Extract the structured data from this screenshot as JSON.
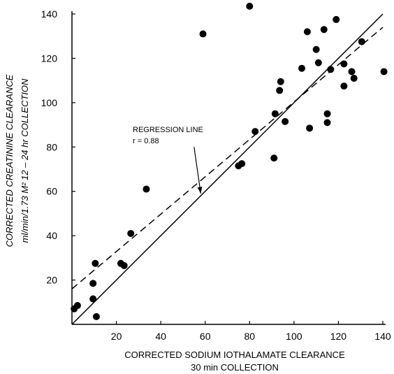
{
  "chart_data": {
    "type": "scatter",
    "xlabel_line1": "CORRECTED SODIUM IOTHALAMATE CLEARANCE",
    "xlabel_line2": "30 min COLLECTION",
    "ylabel_line1": "CORRECTED CREATININE CLEARANCE",
    "ylabel_line2": "ml/min/1.73 M² 12 – 24 hr COLLECTION",
    "xlim": [
      0,
      140
    ],
    "ylim": [
      0,
      140
    ],
    "x_ticks": [
      20,
      40,
      60,
      80,
      100,
      120,
      140
    ],
    "y_ticks": [
      20,
      40,
      60,
      80,
      100,
      120,
      140
    ],
    "grid": false,
    "annotation": {
      "title": "REGRESSION LINE",
      "r_text": "r = 0.88",
      "arrow_from": [
        55,
        80
      ],
      "arrow_to": [
        58,
        59
      ]
    },
    "identity_line": {
      "style": "solid",
      "from": [
        0,
        0
      ],
      "to": [
        140,
        140
      ]
    },
    "regression_line": {
      "style": "dashed",
      "from": [
        0,
        16
      ],
      "to": [
        140,
        134
      ]
    },
    "points": [
      [
        1,
        7
      ],
      [
        2.5,
        8.5
      ],
      [
        9.5,
        11.5
      ],
      [
        9.5,
        18.5
      ],
      [
        10.5,
        27.5
      ],
      [
        11,
        3.5
      ],
      [
        22,
        27.5
      ],
      [
        23.5,
        26.5
      ],
      [
        26.5,
        41
      ],
      [
        33.5,
        61
      ],
      [
        59,
        131
      ],
      [
        80,
        143.5
      ],
      [
        75,
        71.5
      ],
      [
        76.5,
        72.5
      ],
      [
        82.5,
        87
      ],
      [
        91,
        75
      ],
      [
        91.5,
        95
      ],
      [
        93.5,
        105.5
      ],
      [
        94,
        109.5
      ],
      [
        96,
        91.5
      ],
      [
        103.5,
        115.5
      ],
      [
        106,
        132
      ],
      [
        107,
        88.5
      ],
      [
        110,
        124
      ],
      [
        111,
        118
      ],
      [
        113.5,
        133
      ],
      [
        115,
        95
      ],
      [
        115,
        91
      ],
      [
        116.5,
        115
      ],
      [
        119,
        137.5
      ],
      [
        122.5,
        117.5
      ],
      [
        122.5,
        107.5
      ],
      [
        126,
        114
      ],
      [
        127,
        111
      ],
      [
        130.5,
        127.5
      ],
      [
        140.5,
        114
      ]
    ]
  }
}
